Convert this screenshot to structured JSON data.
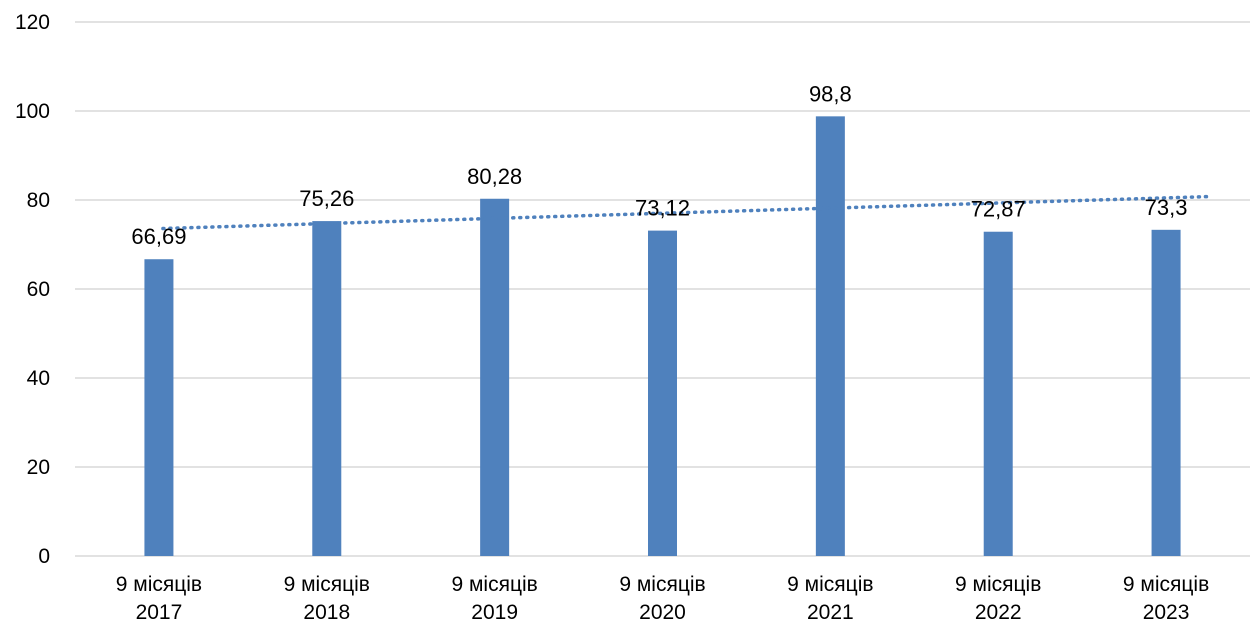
{
  "chart_data": {
    "type": "bar",
    "categories": [
      [
        "9 місяців",
        "2017"
      ],
      [
        "9 місяців",
        "2018"
      ],
      [
        "9 місяців",
        "2019"
      ],
      [
        "9 місяців",
        "2020"
      ],
      [
        "9 місяців",
        "2021"
      ],
      [
        "9 місяців",
        "2022"
      ],
      [
        "9 місяців",
        "2023"
      ]
    ],
    "values": [
      66.69,
      75.26,
      80.28,
      73.12,
      98.8,
      72.87,
      73.3
    ],
    "data_labels": [
      "66,69",
      "75,26",
      "80,28",
      "73,12",
      "98,8",
      "72,87",
      "73,3"
    ],
    "ylim": [
      0,
      120
    ],
    "yticks": [
      0,
      20,
      40,
      60,
      80,
      100,
      120
    ],
    "grid": true,
    "trendline": {
      "type": "linear",
      "style": "dotted"
    },
    "colors": {
      "bar": "#4f81bd",
      "trendline": "#4f81bd",
      "grid": "#d9d9d9"
    }
  }
}
